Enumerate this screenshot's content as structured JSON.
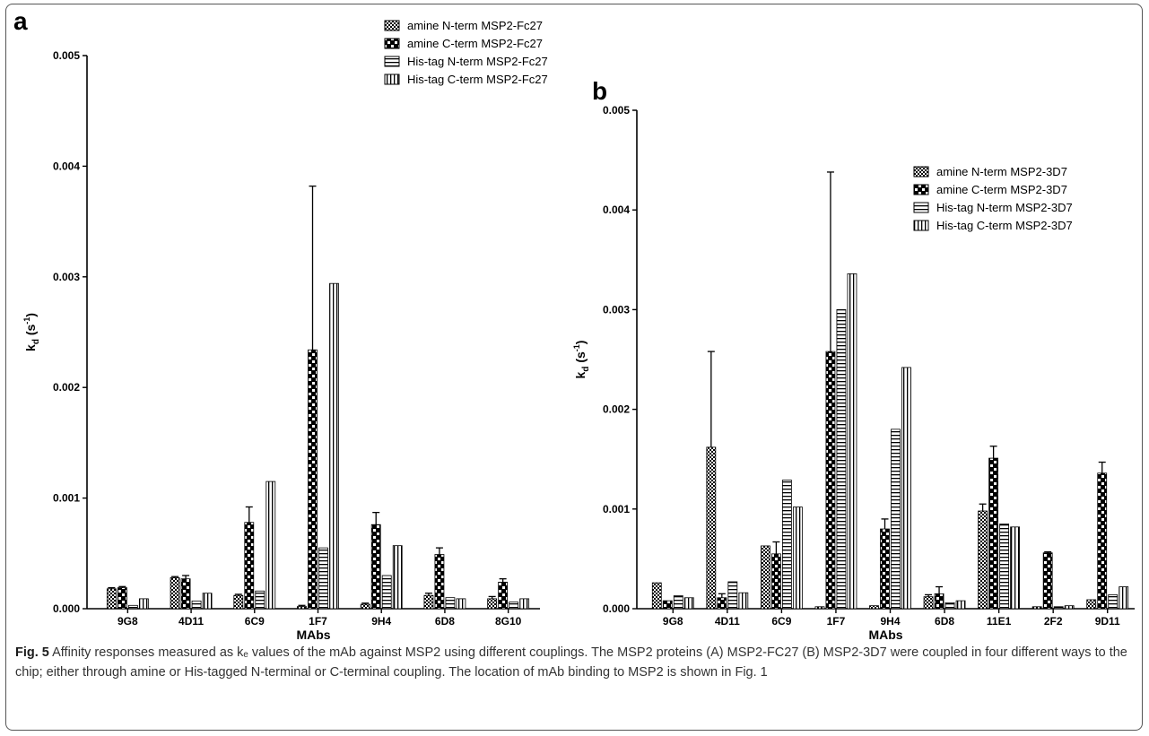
{
  "caption": {
    "label": "Fig. 5",
    "text": "Affinity responses measured as kₑ values of the mAb against MSP2 using different couplings. The MSP2 proteins (A) MSP2-FC27 (B) MSP2-3D7 were coupled in four different ways to the chip; either through amine or His-tagged N-terminal or C-terminal coupling. The location of mAb binding to MSP2 is shown in Fig. 1"
  },
  "chart_data": [
    {
      "panel": "a",
      "type": "bar",
      "xlabel": "MAbs",
      "ylabel": "k",
      "ylabel_sub": "d",
      "ylabel_unit": " (s",
      "ylabel_sup": "-1",
      "ylabel_close": ")",
      "ylim": [
        0,
        0.005
      ],
      "yticks": [
        "0.000",
        "0.001",
        "0.002",
        "0.003",
        "0.004",
        "0.005"
      ],
      "categories": [
        "9G8",
        "4D11",
        "6C9",
        "1F7",
        "9H4",
        "6D8",
        "8G10"
      ],
      "legend_position": "top-right",
      "series": [
        {
          "name": "amine N-term MSP2-Fc27",
          "pattern": "fine-check",
          "values": [
            0.00018,
            0.00028,
            0.00012,
            2e-05,
            4e-05,
            0.00012,
            9e-05
          ],
          "errors": [
            1e-05,
            1e-05,
            1e-05,
            1e-05,
            1e-05,
            2e-05,
            2e-05
          ]
        },
        {
          "name": "amine C-term MSP2-Fc27",
          "pattern": "coarse-check",
          "values": [
            0.00019,
            0.00027,
            0.00078,
            0.00234,
            0.00076,
            0.00049,
            0.00024
          ],
          "errors": [
            1e-05,
            3e-05,
            0.00014,
            0.00148,
            0.00011,
            6e-05,
            3e-05
          ]
        },
        {
          "name": "His-tag N-term MSP2-Fc27",
          "pattern": "horizontal",
          "values": [
            3e-05,
            7e-05,
            0.00016,
            0.00055,
            0.0003,
            0.0001,
            6e-05
          ],
          "errors": [
            0,
            0,
            0,
            0,
            0,
            0,
            0
          ]
        },
        {
          "name": "His-tag C-term MSP2-Fc27",
          "pattern": "vertical",
          "values": [
            9e-05,
            0.00014,
            0.00115,
            0.00294,
            0.00057,
            9e-05,
            9e-05
          ],
          "errors": [
            0,
            0,
            0,
            0,
            0,
            0,
            0
          ]
        }
      ]
    },
    {
      "panel": "b",
      "type": "bar",
      "xlabel": "MAbs",
      "ylabel": "k",
      "ylabel_sub": "d",
      "ylabel_unit": " (s",
      "ylabel_sup": "-1",
      "ylabel_close": ")",
      "ylim": [
        0,
        0.005
      ],
      "yticks": [
        "0.000",
        "0.001",
        "0.002",
        "0.003",
        "0.004",
        "0.005"
      ],
      "categories": [
        "9G8",
        "4D11",
        "6C9",
        "1F7",
        "9H4",
        "6D8",
        "11E1",
        "2F2",
        "9D11"
      ],
      "legend_position": "top-right",
      "series": [
        {
          "name": "amine N-term MSP2-3D7",
          "pattern": "fine-check",
          "values": [
            0.00026,
            0.00162,
            0.00063,
            2e-05,
            3e-05,
            0.00012,
            0.00098,
            2e-05,
            9e-05
          ],
          "errors": [
            0,
            0.00096,
            0,
            0,
            0,
            2e-05,
            7e-05,
            0,
            0
          ]
        },
        {
          "name": "amine C-term MSP2-3D7",
          "pattern": "coarse-check",
          "values": [
            8e-05,
            0.00011,
            0.00055,
            0.00258,
            0.0008,
            0.00015,
            0.00151,
            0.00056,
            0.00136
          ],
          "errors": [
            0,
            4e-05,
            0.00012,
            0.0018,
            0.0001,
            7e-05,
            0.00012,
            1e-05,
            0.00011
          ]
        },
        {
          "name": "His-tag N-term MSP2-3D7",
          "pattern": "horizontal",
          "values": [
            0.00013,
            0.00027,
            0.00129,
            0.003,
            0.0018,
            6e-05,
            0.00085,
            2e-05,
            0.00014
          ],
          "errors": [
            0,
            0,
            0,
            0,
            0,
            0,
            0,
            0,
            0
          ]
        },
        {
          "name": "His-tag C-term MSP2-3D7",
          "pattern": "vertical",
          "values": [
            0.00011,
            0.00016,
            0.00102,
            0.00336,
            0.00242,
            8e-05,
            0.00082,
            3e-05,
            0.00022
          ],
          "errors": [
            0,
            0,
            0,
            0,
            0,
            0,
            0,
            0,
            0
          ]
        }
      ]
    }
  ]
}
